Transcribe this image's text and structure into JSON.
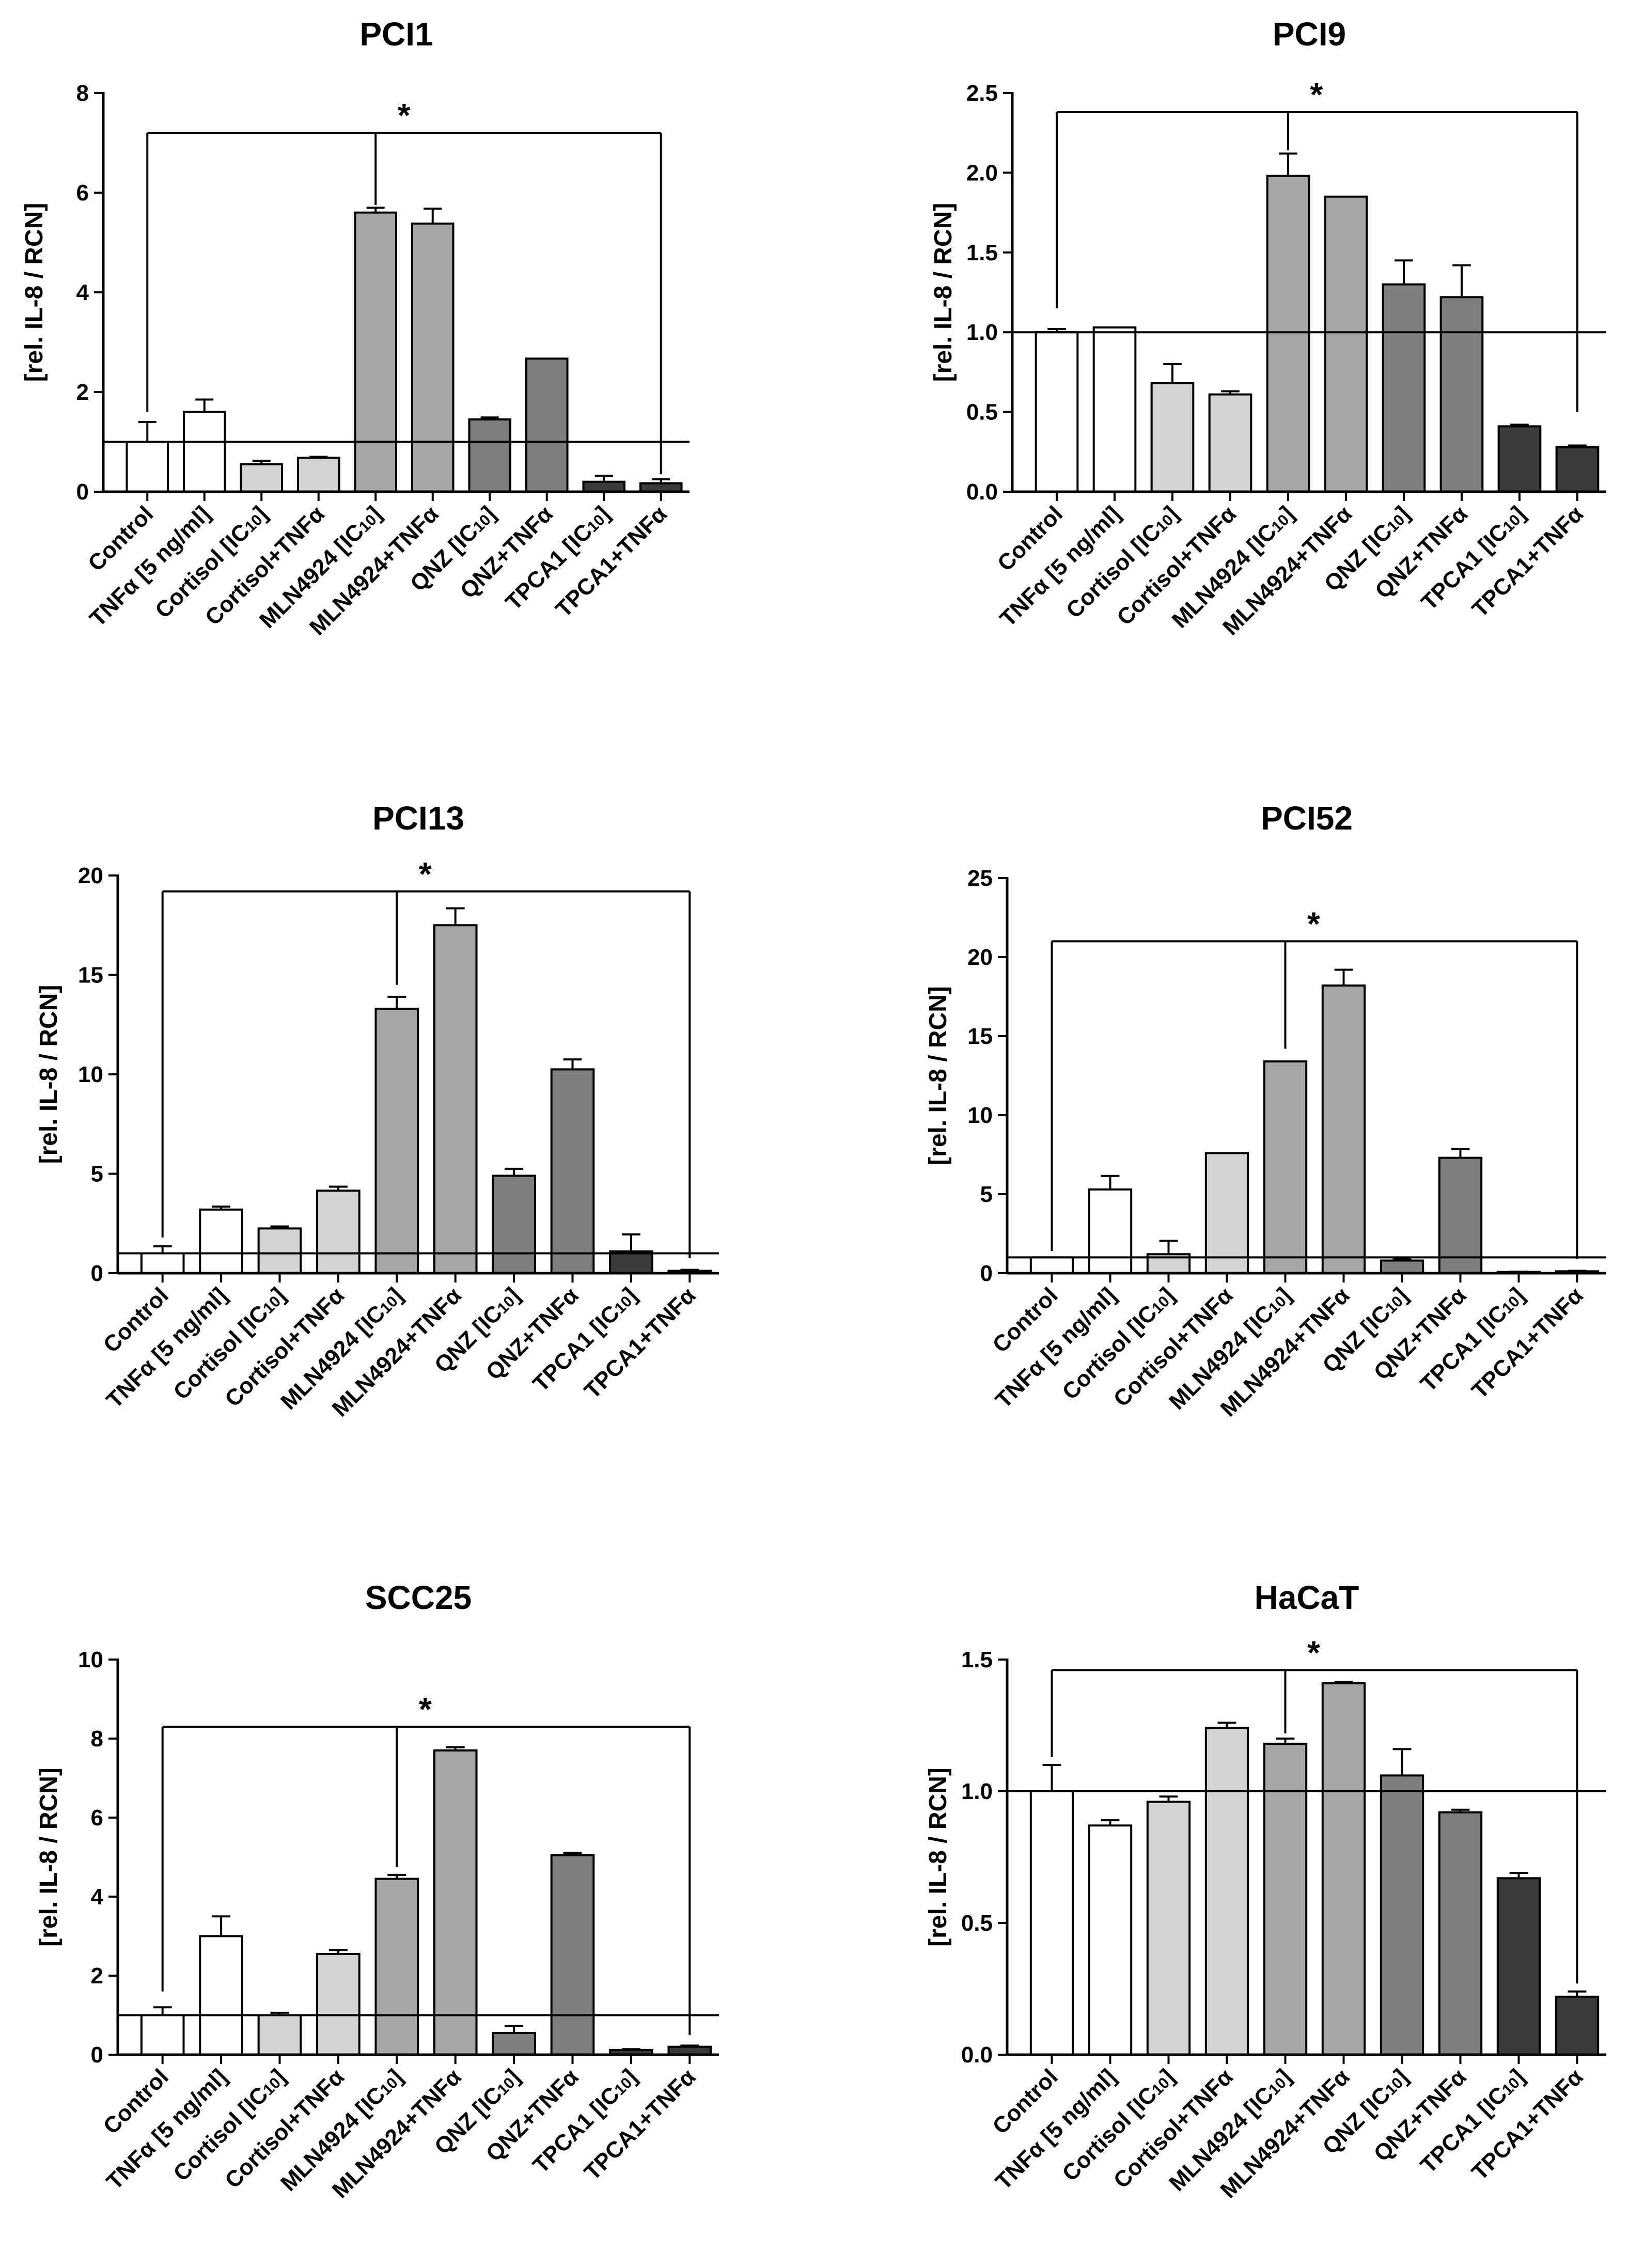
{
  "colors": {
    "Control": "#ffffff",
    "TNFa": "#ffffff",
    "Cortisol": "#d4d4d4",
    "CortisolTNF": "#d4d4d4",
    "MLN4924": "#a6a6a6",
    "MLN4924TNF": "#a6a6a6",
    "QNZ": "#7f7f7f",
    "QNZTNF": "#7f7f7f",
    "TPCA1": "#3a3a3a",
    "TPCA1TNF": "#3a3a3a"
  },
  "categories": [
    {
      "key": "Control",
      "main": "Control",
      "sub": "",
      "tail": ""
    },
    {
      "key": "TNFa",
      "main": "TNFα [5 ng/ml]",
      "sub": "",
      "tail": ""
    },
    {
      "key": "Cortisol",
      "main": "Cortisol [IC",
      "sub": "10",
      "tail": "]"
    },
    {
      "key": "CortisolTNF",
      "main": "Cortisol+TNFα",
      "sub": "",
      "tail": ""
    },
    {
      "key": "MLN4924",
      "main": "MLN4924 [IC",
      "sub": "10",
      "tail": "]"
    },
    {
      "key": "MLN4924TNF",
      "main": "MLN4924+TNFα",
      "sub": "",
      "tail": ""
    },
    {
      "key": "QNZ",
      "main": "QNZ [IC",
      "sub": "10",
      "tail": "]"
    },
    {
      "key": "QNZTNF",
      "main": "QNZ+TNFα",
      "sub": "",
      "tail": ""
    },
    {
      "key": "TPCA1",
      "main": "TPCA1 [IC",
      "sub": "10",
      "tail": "]"
    },
    {
      "key": "TPCA1TNF",
      "main": "TPCA1+TNFα",
      "sub": "",
      "tail": ""
    }
  ],
  "ylabel": "[rel. IL-8 / RCN]",
  "significance_marker": "*",
  "chart_data": [
    {
      "type": "bar",
      "title": "PCI1",
      "ylabel": "[rel. IL-8 / RCN]",
      "ylim": [
        0,
        8
      ],
      "yticks": [
        0,
        2,
        4,
        6,
        8
      ],
      "tick_labels": [
        "0",
        "2",
        "4",
        "6",
        "8"
      ],
      "reference_line": 1.0,
      "values": [
        1.0,
        1.6,
        0.55,
        0.68,
        5.6,
        5.38,
        1.45,
        2.67,
        0.2,
        0.17
      ],
      "errors": [
        0.4,
        0.25,
        0.07,
        0.02,
        0.1,
        0.3,
        0.04,
        0.0,
        0.12,
        0.08
      ],
      "bracket": {
        "y": 7.2,
        "from": 0,
        "to": 9,
        "mid": 4,
        "mid_bottom": 5.75,
        "from_bottom": 1.6,
        "to_bottom": 0.35
      }
    },
    {
      "type": "bar",
      "title": "PCI9",
      "ylabel": "[rel. IL-8 / RCN]",
      "ylim": [
        0,
        2.5
      ],
      "yticks": [
        0,
        0.5,
        1.0,
        1.5,
        2.0,
        2.5
      ],
      "tick_labels": [
        "0.0",
        "0.5",
        "1.0",
        "1.5",
        "2.0",
        "2.5"
      ],
      "reference_line": 1.0,
      "values": [
        1.0,
        1.03,
        0.68,
        0.61,
        1.98,
        1.85,
        1.3,
        1.22,
        0.41,
        0.28
      ],
      "errors": [
        0.02,
        0.0,
        0.12,
        0.02,
        0.14,
        0.0,
        0.15,
        0.2,
        0.01,
        0.01
      ],
      "bracket": {
        "y": 2.38,
        "from": 0,
        "to": 9,
        "mid": 4,
        "mid_bottom": 2.14,
        "from_bottom": 1.15,
        "to_bottom": 0.5
      }
    },
    {
      "type": "bar",
      "title": "PCI13",
      "ylabel": "[rel. IL-8 / RCN]",
      "ylim": [
        0,
        20
      ],
      "yticks": [
        0,
        5,
        10,
        15,
        20
      ],
      "tick_labels": [
        "0",
        "5",
        "10",
        "15",
        "20"
      ],
      "reference_line": 1.0,
      "values": [
        1.0,
        3.2,
        2.25,
        4.15,
        13.3,
        17.5,
        4.9,
        10.25,
        1.1,
        0.12
      ],
      "errors": [
        0.35,
        0.15,
        0.1,
        0.2,
        0.6,
        0.85,
        0.35,
        0.5,
        0.85,
        0.05
      ],
      "bracket": {
        "y": 19.2,
        "from": 0,
        "to": 9,
        "mid": 4,
        "mid_bottom": 14.5,
        "from_bottom": 1.8,
        "to_bottom": 0.75
      }
    },
    {
      "type": "bar",
      "title": "PCI52",
      "ylabel": "[rel. IL-8 / RCN]",
      "ylim": [
        0,
        25
      ],
      "yticks": [
        0,
        5,
        10,
        15,
        20,
        25
      ],
      "tick_labels": [
        "0",
        "5",
        "10",
        "15",
        "20",
        "25"
      ],
      "reference_line": 1.0,
      "values": [
        1.0,
        5.3,
        1.2,
        7.6,
        13.4,
        18.2,
        0.8,
        7.3,
        0.08,
        0.12
      ],
      "errors": [
        0.0,
        0.85,
        0.85,
        0.0,
        0.0,
        1.0,
        0.1,
        0.55,
        0.02,
        0.03
      ],
      "bracket": {
        "y": 21.0,
        "from": 0,
        "to": 9,
        "mid": 4,
        "mid_bottom": 14.2,
        "from_bottom": 1.4,
        "to_bottom": 0.9
      }
    },
    {
      "type": "bar",
      "title": "SCC25",
      "ylabel": "[rel. IL-8 / RCN]",
      "ylim": [
        0,
        10
      ],
      "yticks": [
        0,
        2,
        4,
        6,
        8,
        10
      ],
      "tick_labels": [
        "0",
        "2",
        "4",
        "6",
        "8",
        "10"
      ],
      "reference_line": 1.0,
      "values": [
        1.0,
        3.0,
        1.0,
        2.55,
        4.45,
        7.7,
        0.55,
        5.05,
        0.12,
        0.2
      ],
      "errors": [
        0.2,
        0.5,
        0.06,
        0.1,
        0.1,
        0.08,
        0.18,
        0.06,
        0.02,
        0.03
      ],
      "bracket": {
        "y": 8.3,
        "from": 0,
        "to": 9,
        "mid": 4,
        "mid_bottom": 4.75,
        "from_bottom": 1.6,
        "to_bottom": 0.5
      }
    },
    {
      "type": "bar",
      "title": "HaCaT",
      "ylabel": "[rel. IL-8 / RCN]",
      "ylim": [
        0,
        1.5
      ],
      "yticks": [
        0,
        0.5,
        1.0,
        1.5
      ],
      "tick_labels": [
        "0.0",
        "0.5",
        "1.0",
        "1.5"
      ],
      "reference_line": 1.0,
      "values": [
        1.0,
        0.87,
        0.96,
        1.24,
        1.18,
        1.41,
        1.06,
        0.92,
        0.67,
        0.22
      ],
      "errors": [
        0.1,
        0.02,
        0.02,
        0.02,
        0.02,
        0.005,
        0.1,
        0.01,
        0.02,
        0.02
      ],
      "bracket": {
        "y": 1.46,
        "from": 0,
        "to": 9,
        "mid": 4,
        "mid_bottom": 1.22,
        "from_bottom": 1.13,
        "to_bottom": 0.27
      }
    }
  ]
}
